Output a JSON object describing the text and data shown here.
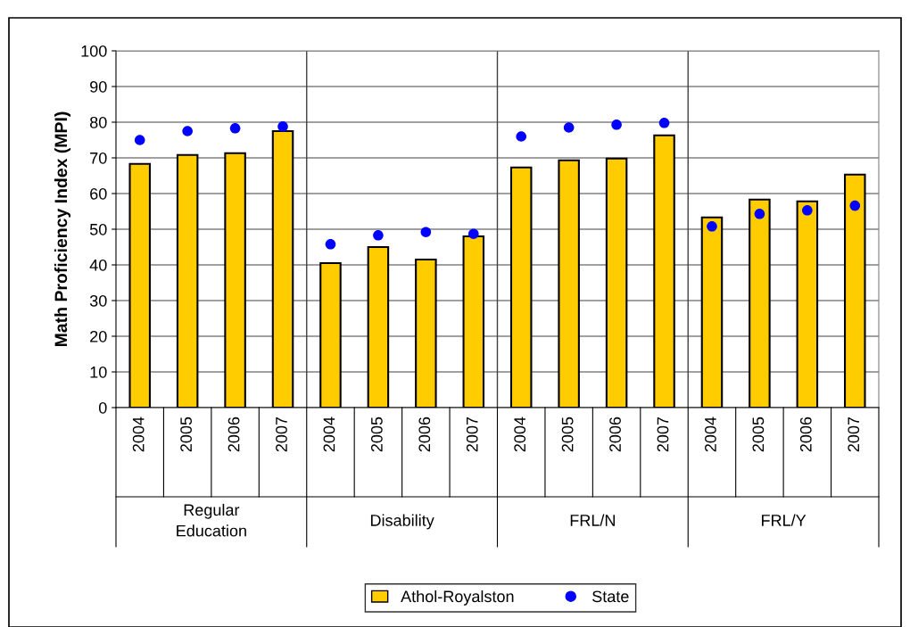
{
  "chart_data": {
    "type": "bar",
    "ylabel": "Math Proficiency Index (MPI)",
    "categories": [
      "2004",
      "2005",
      "2006",
      "2007",
      "2004",
      "2005",
      "2006",
      "2007",
      "2004",
      "2005",
      "2006",
      "2007",
      "2004",
      "2005",
      "2006",
      "2007"
    ],
    "annotations": [
      "Regular\nEducation",
      "Disability",
      "FRL/N",
      "FRL/Y"
    ],
    "series": [
      {
        "name": "Athol-Royalston",
        "color": "#ffcc00",
        "values": [
          68.3,
          70.8,
          71.3,
          77.5,
          40.5,
          45.0,
          41.5,
          48.0,
          67.3,
          69.3,
          69.8,
          76.3,
          53.3,
          58.3,
          57.8,
          65.3
        ]
      },
      {
        "name": "State",
        "type": "scatter",
        "color": "#0000ff",
        "values": [
          75.0,
          77.5,
          78.3,
          78.8,
          45.8,
          48.3,
          49.2,
          48.7,
          76.0,
          78.5,
          79.3,
          79.8,
          50.8,
          54.3,
          55.3,
          56.6
        ]
      }
    ],
    "ylim": [
      0,
      100
    ],
    "yticks": [
      0,
      10,
      20,
      30,
      40,
      50,
      60,
      70,
      80,
      90,
      100
    ],
    "grid": "y",
    "legend": "bottom",
    "marker": "circle"
  }
}
